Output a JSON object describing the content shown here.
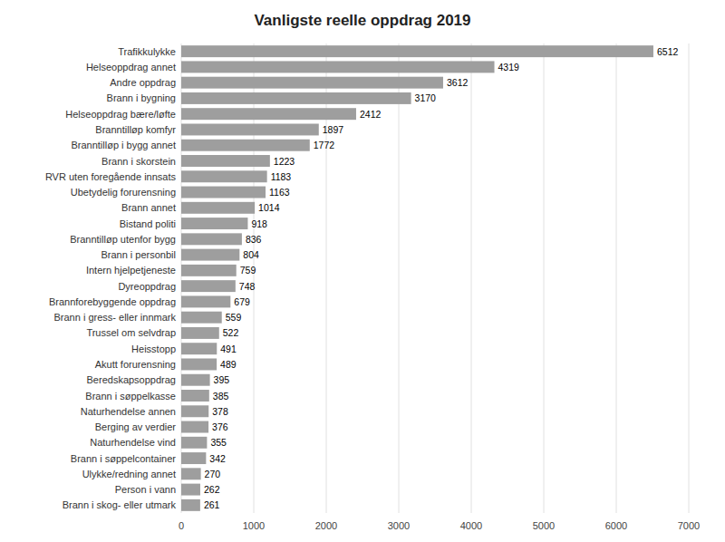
{
  "chart_data": {
    "type": "bar",
    "orientation": "horizontal",
    "title": "Vanligste reelle oppdrag 2019",
    "categories": [
      "Brann i skog- eller utmark",
      "Person i vann",
      "Ulykke/redning annet",
      "Brann i søppelcontainer",
      "Naturhendelse vind",
      "Berging av verdier",
      "Naturhendelse annen",
      "Brann i søppelkasse",
      "Beredskapsoppdrag",
      "Akutt forurensning",
      "Heisstopp",
      "Trussel om selvdrap",
      "Brann i gress- eller innmark",
      "Brannforebyggende oppdrag",
      "Dyreoppdrag",
      "Intern hjelpetjeneste",
      "Brann i personbil",
      "Branntilløp utenfor bygg",
      "Bistand politi",
      "Brann annet",
      "Ubetydelig forurensning",
      "RVR uten foregående innsats",
      "Brann i skorstein",
      "Branntilløp i bygg annet",
      "Branntilløp komfyr",
      "Helseoppdrag bære/løfte",
      "Brann i bygning",
      "Andre oppdrag",
      "Helseoppdrag annet",
      "Trafikkulykke"
    ],
    "values": [
      261,
      262,
      270,
      342,
      355,
      376,
      378,
      385,
      395,
      489,
      491,
      522,
      559,
      679,
      748,
      759,
      804,
      836,
      918,
      1014,
      1163,
      1183,
      1223,
      1772,
      1897,
      2412,
      3170,
      3612,
      4319,
      6512
    ],
    "color": "#9e9e9e",
    "xlim": [
      0,
      7000
    ],
    "xticks": [
      0,
      1000,
      2000,
      3000,
      4000,
      5000,
      6000,
      7000
    ],
    "grid": true,
    "data_labels": true
  }
}
